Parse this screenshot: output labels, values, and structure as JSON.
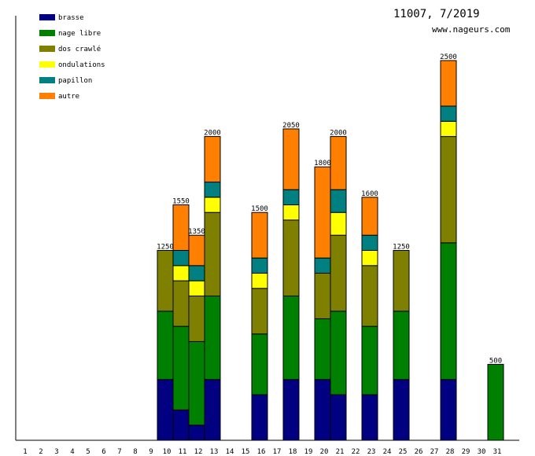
{
  "chart_data": {
    "type": "bar",
    "stacked": true,
    "title": "11007, 7/2019",
    "subtitle": "www.nageurs.com",
    "xlabel": "",
    "ylabel": "",
    "ylim": [
      0,
      2500
    ],
    "legend_position": "top-left",
    "categories": [
      "1",
      "2",
      "3",
      "4",
      "5",
      "6",
      "7",
      "8",
      "9",
      "10",
      "11",
      "12",
      "13",
      "14",
      "15",
      "16",
      "17",
      "18",
      "19",
      "20",
      "21",
      "22",
      "23",
      "24",
      "25",
      "26",
      "27",
      "28",
      "29",
      "30",
      "31"
    ],
    "series": [
      {
        "name": "brasse",
        "color": "#000080",
        "values": [
          0,
          0,
          0,
          0,
          0,
          0,
          0,
          0,
          0,
          400,
          200,
          100,
          400,
          0,
          0,
          300,
          0,
          400,
          0,
          400,
          300,
          0,
          300,
          0,
          400,
          0,
          0,
          400,
          0,
          0,
          0
        ]
      },
      {
        "name": "nage libre",
        "color": "#008000",
        "values": [
          0,
          0,
          0,
          0,
          0,
          0,
          0,
          0,
          0,
          450,
          550,
          550,
          550,
          0,
          0,
          400,
          0,
          550,
          0,
          400,
          550,
          0,
          450,
          0,
          450,
          0,
          0,
          900,
          0,
          0,
          500
        ]
      },
      {
        "name": "dos crawlé",
        "color": "#808000",
        "values": [
          0,
          0,
          0,
          0,
          0,
          0,
          0,
          0,
          0,
          400,
          300,
          300,
          550,
          0,
          0,
          300,
          0,
          500,
          0,
          300,
          500,
          0,
          400,
          0,
          400,
          0,
          0,
          700,
          0,
          0,
          0
        ]
      },
      {
        "name": "ondulations",
        "color": "#ffff00",
        "values": [
          0,
          0,
          0,
          0,
          0,
          0,
          0,
          0,
          0,
          0,
          100,
          100,
          100,
          0,
          0,
          100,
          0,
          100,
          0,
          0,
          150,
          0,
          100,
          0,
          0,
          0,
          0,
          100,
          0,
          0,
          0
        ]
      },
      {
        "name": "papillon",
        "color": "#008080",
        "values": [
          0,
          0,
          0,
          0,
          0,
          0,
          0,
          0,
          0,
          0,
          100,
          100,
          100,
          0,
          0,
          100,
          0,
          100,
          0,
          100,
          150,
          0,
          100,
          0,
          0,
          0,
          0,
          100,
          0,
          0,
          0
        ]
      },
      {
        "name": "autre",
        "color": "#ff8000",
        "values": [
          0,
          0,
          0,
          0,
          0,
          0,
          0,
          0,
          0,
          0,
          300,
          200,
          300,
          0,
          0,
          300,
          0,
          400,
          0,
          600,
          350,
          0,
          250,
          0,
          0,
          0,
          0,
          300,
          0,
          0,
          0
        ]
      }
    ],
    "totals": {
      "10": "1250",
      "11": "1550",
      "12": "1350",
      "13": "2000",
      "16": "1500",
      "18": "2050",
      "20": "1800",
      "21": "2000",
      "23": "1600",
      "25": "1250",
      "28": "2500",
      "31": "500"
    }
  }
}
